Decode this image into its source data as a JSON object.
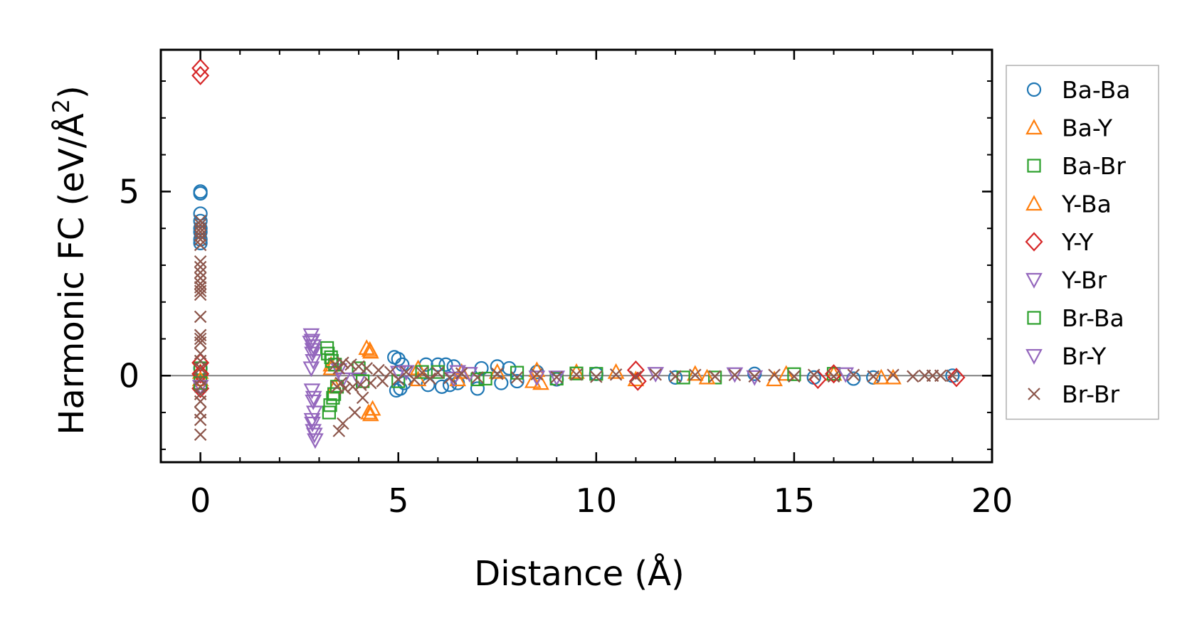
{
  "chart_data": {
    "type": "scatter",
    "xlabel": "Distance (Å)",
    "ylabel_main": "Harmonic FC (eV/Å",
    "ylabel_sup": "2",
    "ylabel_close": ")",
    "xlim": [
      -1,
      20
    ],
    "ylim": [
      -2.35,
      8.85
    ],
    "x_ticks": [
      0,
      5,
      10,
      15,
      20
    ],
    "x_tick_labels": [
      "0",
      "5",
      "10",
      "15",
      "20"
    ],
    "x_minor_step": 1,
    "y_ticks": [
      0,
      5
    ],
    "y_tick_labels": [
      "0",
      "5"
    ],
    "y_minor_step": 1,
    "zero_line": true,
    "grid": false,
    "legend_position": "outside-right",
    "series": [
      {
        "name": "Ba-Ba",
        "color": "#1f77b4",
        "marker": "circle",
        "points": [
          [
            0,
            5.0
          ],
          [
            0,
            4.95
          ],
          [
            0,
            4.4
          ],
          [
            0,
            4.2
          ],
          [
            0,
            4.0
          ],
          [
            0,
            3.9
          ],
          [
            0,
            3.7
          ],
          [
            0,
            3.6
          ],
          [
            0,
            0.2
          ],
          [
            0,
            -0.3
          ],
          [
            4.9,
            0.5
          ],
          [
            4.95,
            -0.4
          ],
          [
            5.0,
            0.45
          ],
          [
            5.05,
            -0.35
          ],
          [
            5.1,
            0.3
          ],
          [
            5.15,
            -0.2
          ],
          [
            5.7,
            0.3
          ],
          [
            5.75,
            -0.25
          ],
          [
            6.0,
            0.3
          ],
          [
            6.1,
            -0.3
          ],
          [
            6.2,
            0.3
          ],
          [
            6.3,
            -0.25
          ],
          [
            6.4,
            0.25
          ],
          [
            6.5,
            -0.2
          ],
          [
            7.0,
            -0.35
          ],
          [
            7.1,
            0.2
          ],
          [
            7.5,
            0.25
          ],
          [
            7.6,
            -0.2
          ],
          [
            7.8,
            0.2
          ],
          [
            8.0,
            -0.15
          ],
          [
            8.5,
            0.1
          ],
          [
            9.0,
            -0.1
          ],
          [
            10.0,
            0.05
          ],
          [
            12.0,
            -0.05
          ],
          [
            14.0,
            0.05
          ],
          [
            15.5,
            -0.05
          ],
          [
            16.5,
            -0.08
          ],
          [
            17.0,
            -0.05
          ],
          [
            19.0,
            0.0
          ]
        ]
      },
      {
        "name": "Ba-Y",
        "color": "#ff7f0e",
        "marker": "triangle-up",
        "points": [
          [
            0,
            0.1
          ],
          [
            3.3,
            0.3
          ],
          [
            3.4,
            -0.3
          ],
          [
            4.2,
            0.75
          ],
          [
            4.3,
            0.65
          ],
          [
            4.25,
            -1.0
          ],
          [
            4.35,
            -0.9
          ],
          [
            5.5,
            0.2
          ],
          [
            6.5,
            -0.1
          ],
          [
            7.5,
            0.1
          ],
          [
            8.5,
            0.15
          ],
          [
            8.6,
            -0.2
          ],
          [
            9.5,
            0.1
          ],
          [
            11.0,
            -0.1
          ],
          [
            12.5,
            0.05
          ],
          [
            14.5,
            -0.1
          ],
          [
            16.0,
            0.05
          ],
          [
            17.5,
            -0.05
          ]
        ]
      },
      {
        "name": "Ba-Br",
        "color": "#2ca02c",
        "marker": "square",
        "points": [
          [
            0,
            0.2
          ],
          [
            3.2,
            0.75
          ],
          [
            3.25,
            -1.0
          ],
          [
            3.3,
            0.5
          ],
          [
            3.35,
            -0.6
          ],
          [
            3.4,
            0.3
          ],
          [
            3.45,
            -0.3
          ],
          [
            4.0,
            0.2
          ],
          [
            5.0,
            -0.15
          ],
          [
            6.0,
            0.1
          ],
          [
            7.0,
            -0.1
          ],
          [
            8.0,
            0.08
          ],
          [
            9.0,
            -0.08
          ],
          [
            10.0,
            0.05
          ],
          [
            13.0,
            -0.05
          ],
          [
            16.0,
            0.05
          ]
        ]
      },
      {
        "name": "Y-Ba",
        "color": "#ff7f0e",
        "marker": "triangle-up",
        "points": [
          [
            0,
            -0.1
          ],
          [
            3.3,
            0.2
          ],
          [
            4.28,
            0.7
          ],
          [
            4.3,
            -1.05
          ],
          [
            5.5,
            -0.1
          ],
          [
            6.6,
            0.1
          ],
          [
            8.4,
            -0.15
          ],
          [
            10.5,
            0.1
          ],
          [
            12.8,
            -0.05
          ],
          [
            14.8,
            0.05
          ],
          [
            17.2,
            -0.05
          ]
        ]
      },
      {
        "name": "Y-Y",
        "color": "#d62728",
        "marker": "diamond",
        "points": [
          [
            0,
            8.35
          ],
          [
            0,
            8.15
          ],
          [
            0,
            0.35
          ],
          [
            0,
            -0.35
          ],
          [
            0,
            0.05
          ],
          [
            11.0,
            0.15
          ],
          [
            11.05,
            -0.15
          ],
          [
            15.6,
            -0.1
          ],
          [
            16.0,
            0.05
          ],
          [
            19.1,
            -0.05
          ]
        ]
      },
      {
        "name": "Y-Br",
        "color": "#9467bd",
        "marker": "triangle-down",
        "points": [
          [
            2.8,
            1.1
          ],
          [
            2.82,
            0.95
          ],
          [
            2.85,
            0.8
          ],
          [
            2.83,
            0.6
          ],
          [
            2.85,
            0.4
          ],
          [
            2.8,
            0.2
          ],
          [
            2.82,
            -0.4
          ],
          [
            2.85,
            -0.7
          ],
          [
            2.88,
            -1.0
          ],
          [
            2.83,
            -1.3
          ],
          [
            2.85,
            -1.5
          ],
          [
            2.9,
            -1.75
          ],
          [
            3.5,
            0.15
          ],
          [
            4.0,
            -0.1
          ],
          [
            5.2,
            0.1
          ],
          [
            6.4,
            -0.08
          ],
          [
            6.8,
            0.05
          ],
          [
            8.5,
            -0.05
          ],
          [
            11.5,
            0.05
          ],
          [
            14.0,
            -0.04
          ],
          [
            16.3,
            0.04
          ]
        ]
      },
      {
        "name": "Br-Ba",
        "color": "#2ca02c",
        "marker": "square",
        "points": [
          [
            0,
            -0.2
          ],
          [
            3.22,
            0.6
          ],
          [
            3.28,
            -0.8
          ],
          [
            3.32,
            0.4
          ],
          [
            3.38,
            -0.5
          ],
          [
            4.1,
            -0.15
          ],
          [
            5.6,
            0.1
          ],
          [
            7.2,
            -0.08
          ],
          [
            9.5,
            0.06
          ],
          [
            12.2,
            -0.05
          ],
          [
            15.0,
            0.04
          ]
        ]
      },
      {
        "name": "Br-Y",
        "color": "#9467bd",
        "marker": "triangle-down",
        "points": [
          [
            0,
            -0.3
          ],
          [
            2.78,
            0.9
          ],
          [
            2.84,
            0.7
          ],
          [
            2.86,
            -0.6
          ],
          [
            2.82,
            -1.2
          ],
          [
            2.88,
            -1.6
          ],
          [
            3.6,
            -0.1
          ],
          [
            5.0,
            0.08
          ],
          [
            6.5,
            0.1
          ],
          [
            9.0,
            -0.05
          ],
          [
            13.5,
            0.04
          ]
        ]
      },
      {
        "name": "Br-Br",
        "color": "#8c564b",
        "marker": "x",
        "points": [
          [
            0,
            4.2
          ],
          [
            0,
            4.1
          ],
          [
            0,
            4.0
          ],
          [
            0,
            3.9
          ],
          [
            0,
            3.8
          ],
          [
            0,
            3.7
          ],
          [
            0,
            3.55
          ],
          [
            0,
            3.1
          ],
          [
            0,
            2.95
          ],
          [
            0,
            2.8
          ],
          [
            0,
            2.65
          ],
          [
            0,
            2.5
          ],
          [
            0,
            2.4
          ],
          [
            0,
            2.3
          ],
          [
            0,
            2.2
          ],
          [
            0,
            1.6
          ],
          [
            0,
            1.1
          ],
          [
            0,
            1.0
          ],
          [
            0,
            0.9
          ],
          [
            0,
            0.6
          ],
          [
            0,
            0.4
          ],
          [
            0,
            0.2
          ],
          [
            0,
            -0.1
          ],
          [
            0,
            -0.3
          ],
          [
            0,
            -0.5
          ],
          [
            0,
            -0.7
          ],
          [
            0,
            -1.0
          ],
          [
            0,
            -1.2
          ],
          [
            0,
            -1.6
          ],
          [
            3.4,
            0.3
          ],
          [
            3.45,
            -0.3
          ],
          [
            3.5,
            0.2
          ],
          [
            3.55,
            -0.2
          ],
          [
            3.6,
            0.35
          ],
          [
            3.65,
            -0.35
          ],
          [
            3.5,
            -1.5
          ],
          [
            3.6,
            -1.3
          ],
          [
            3.8,
            0.3
          ],
          [
            3.85,
            -0.3
          ],
          [
            3.9,
            -1.0
          ],
          [
            4.0,
            0.25
          ],
          [
            4.05,
            -0.25
          ],
          [
            4.1,
            -0.6
          ],
          [
            4.2,
            0.2
          ],
          [
            4.3,
            -0.2
          ],
          [
            4.5,
            0.15
          ],
          [
            4.6,
            -0.15
          ],
          [
            4.8,
            0.1
          ],
          [
            5.0,
            -0.1
          ],
          [
            5.2,
            0.1
          ],
          [
            5.4,
            -0.1
          ],
          [
            5.6,
            0.08
          ],
          [
            5.8,
            -0.08
          ],
          [
            6.0,
            0.08
          ],
          [
            6.3,
            -0.06
          ],
          [
            6.6,
            0.06
          ],
          [
            7.0,
            -0.05
          ],
          [
            7.5,
            0.05
          ],
          [
            8.0,
            -0.05
          ],
          [
            8.5,
            0.04
          ],
          [
            9.0,
            -0.04
          ],
          [
            9.5,
            0.03
          ],
          [
            10.0,
            -0.03
          ],
          [
            10.5,
            0.03
          ],
          [
            11.0,
            -0.03
          ],
          [
            11.5,
            0.03
          ],
          [
            12.0,
            -0.02
          ],
          [
            12.5,
            0.02
          ],
          [
            13.0,
            -0.02
          ],
          [
            13.5,
            0.02
          ],
          [
            14.0,
            -0.02
          ],
          [
            14.5,
            0.02
          ],
          [
            15.0,
            -0.02
          ],
          [
            15.5,
            0.02
          ],
          [
            16.0,
            -0.02
          ],
          [
            16.5,
            0.02
          ],
          [
            17.0,
            -0.02
          ],
          [
            17.5,
            0.02
          ],
          [
            18.0,
            -0.02
          ],
          [
            18.3,
            0.0
          ],
          [
            18.5,
            0.0
          ],
          [
            18.7,
            0.0
          ],
          [
            19.0,
            0.0
          ]
        ]
      }
    ]
  }
}
